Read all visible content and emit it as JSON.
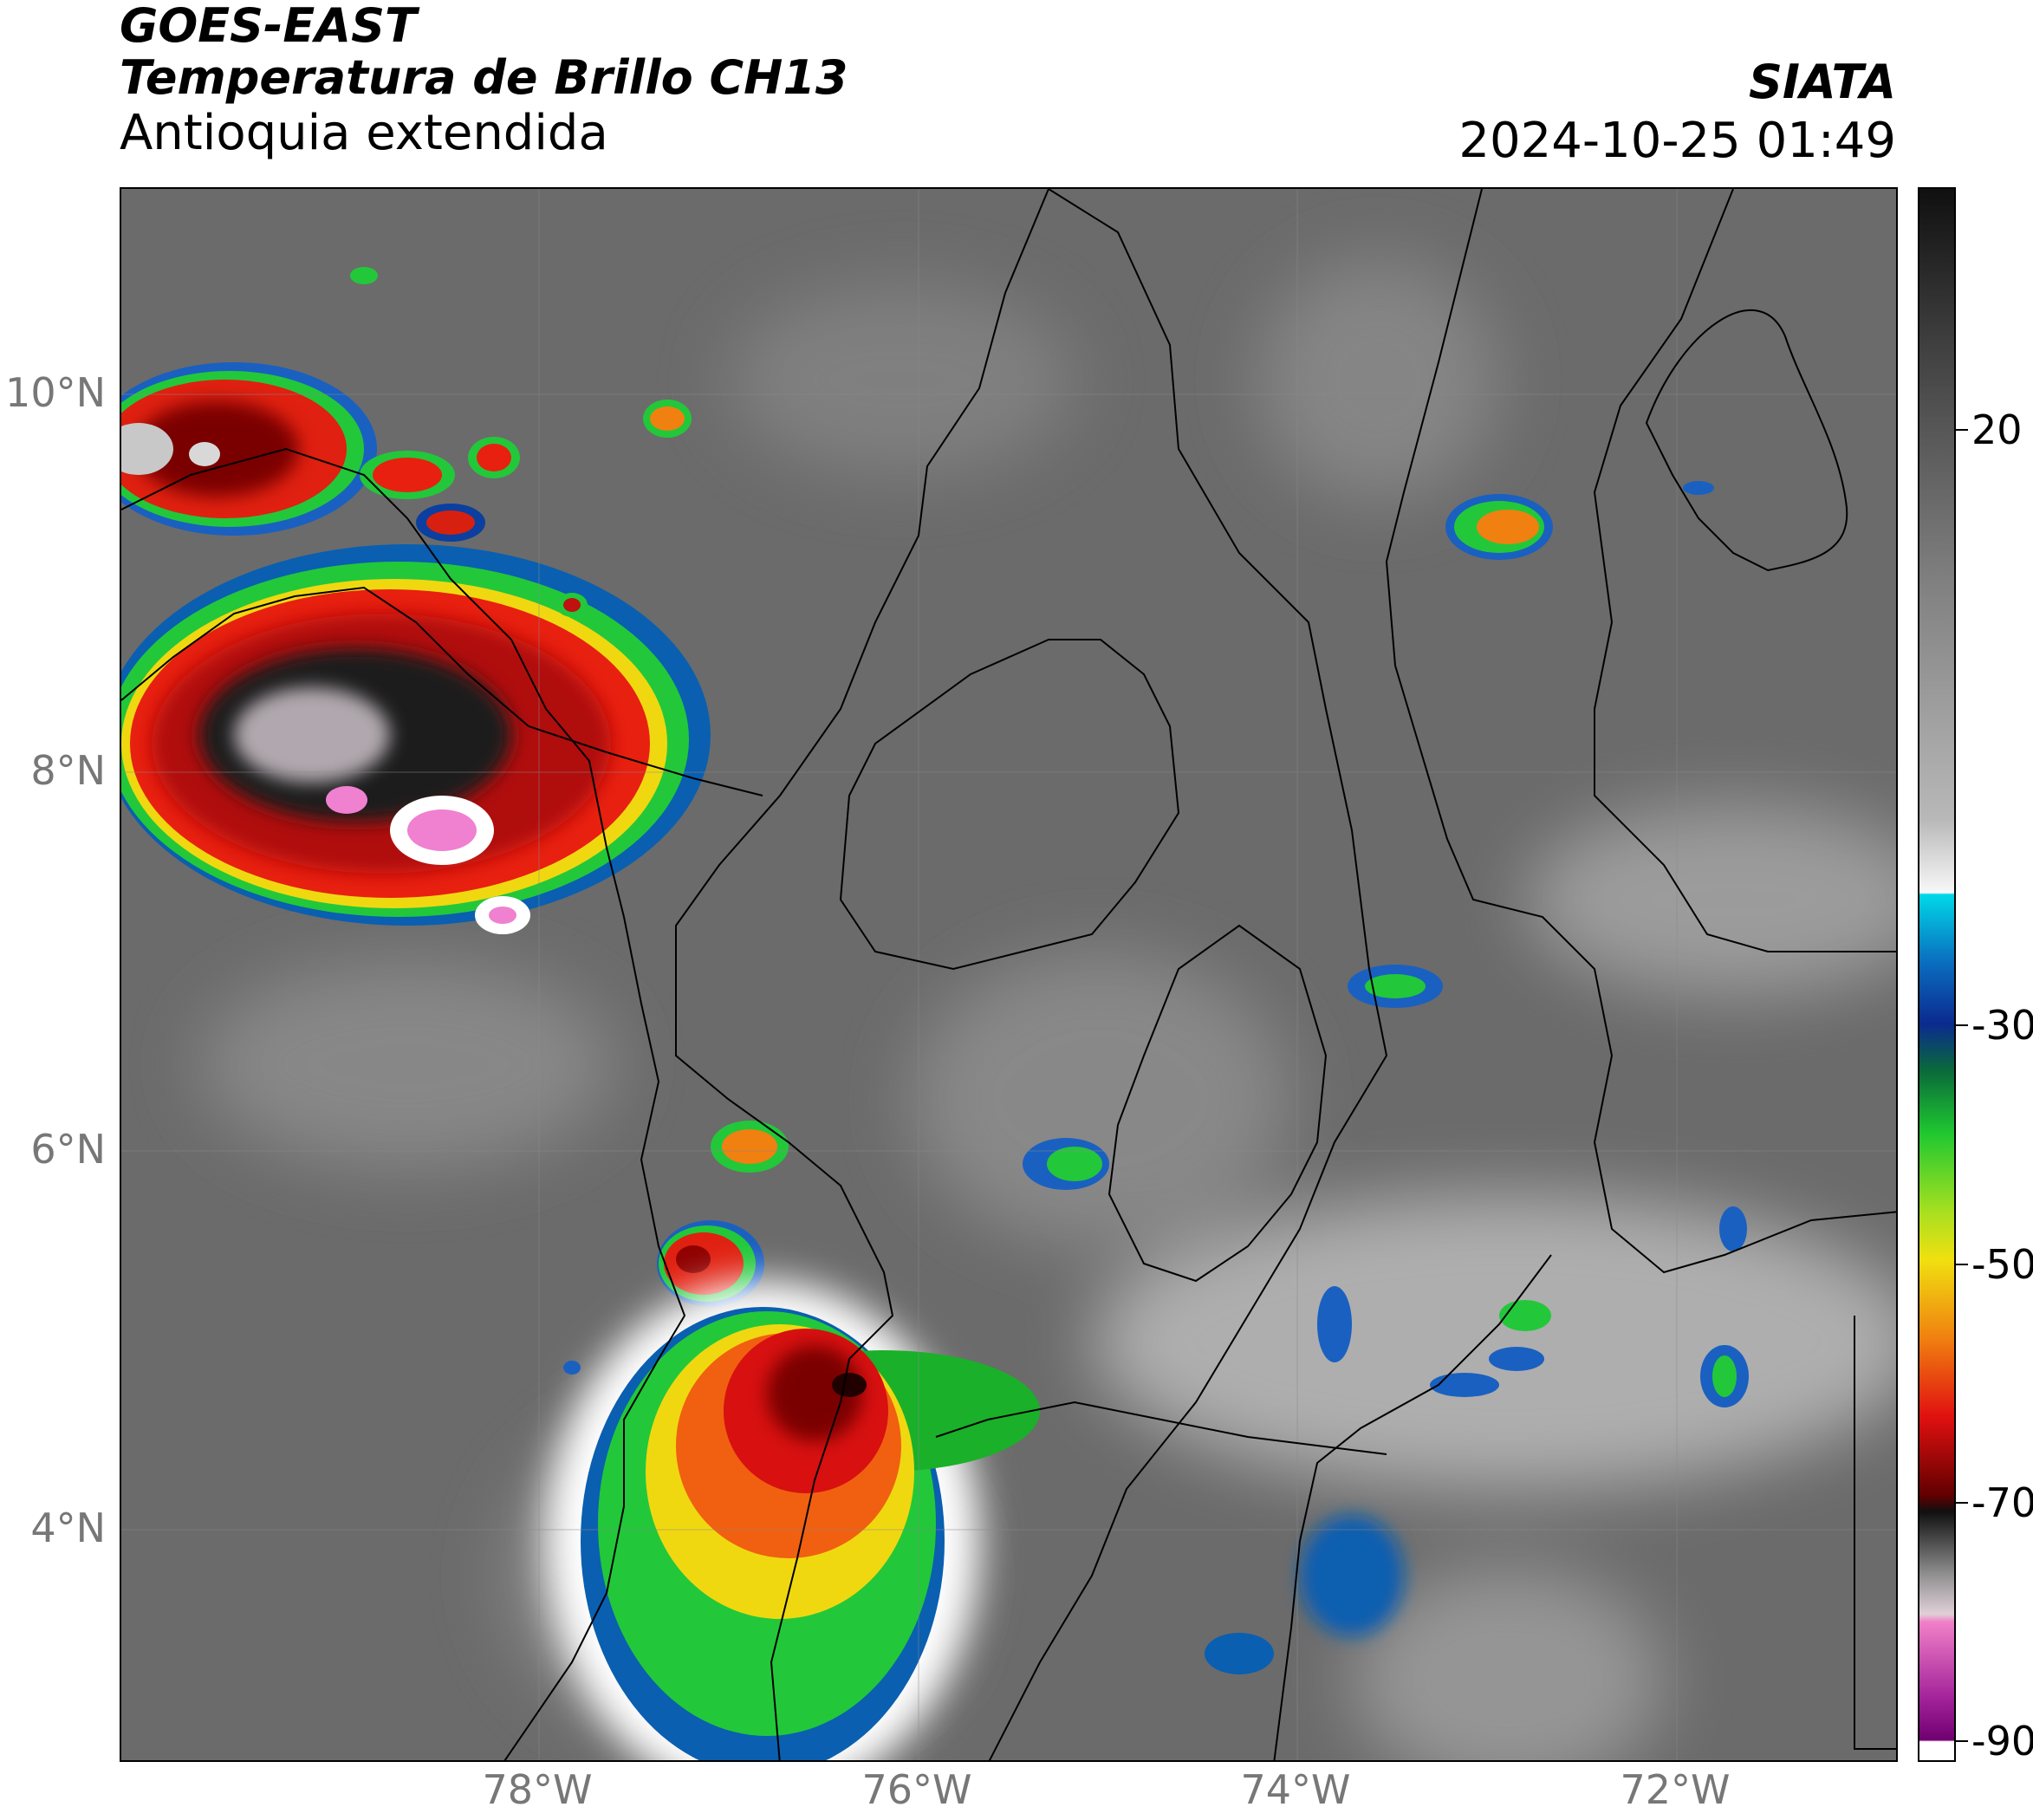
{
  "header": {
    "satellite": "GOES-EAST",
    "product": "Temperatura de Brillo CH13",
    "region": "Antioquia extendida",
    "agency": "SIATA",
    "datetime": "2024-10-25 01:49"
  },
  "map": {
    "lat_labels": [
      "10°N",
      "8°N",
      "6°N",
      "4°N"
    ],
    "lon_labels": [
      "78°W",
      "76°W",
      "74°W",
      "72°W"
    ]
  },
  "colorbar": {
    "tick_labels": [
      "20",
      "-30",
      "-50",
      "-70",
      "-90"
    ],
    "colors": {
      "warm_top": "#111111",
      "gray": "#6e6e6e",
      "light": "#f5f5f5",
      "cyan": "#00d8e8",
      "blue": "#1a3fa8",
      "green": "#22c83a",
      "yellow": "#f0e010",
      "red": "#d81010",
      "dark": "#250000",
      "magenta": "#e060b8",
      "purple": "#700070"
    }
  }
}
